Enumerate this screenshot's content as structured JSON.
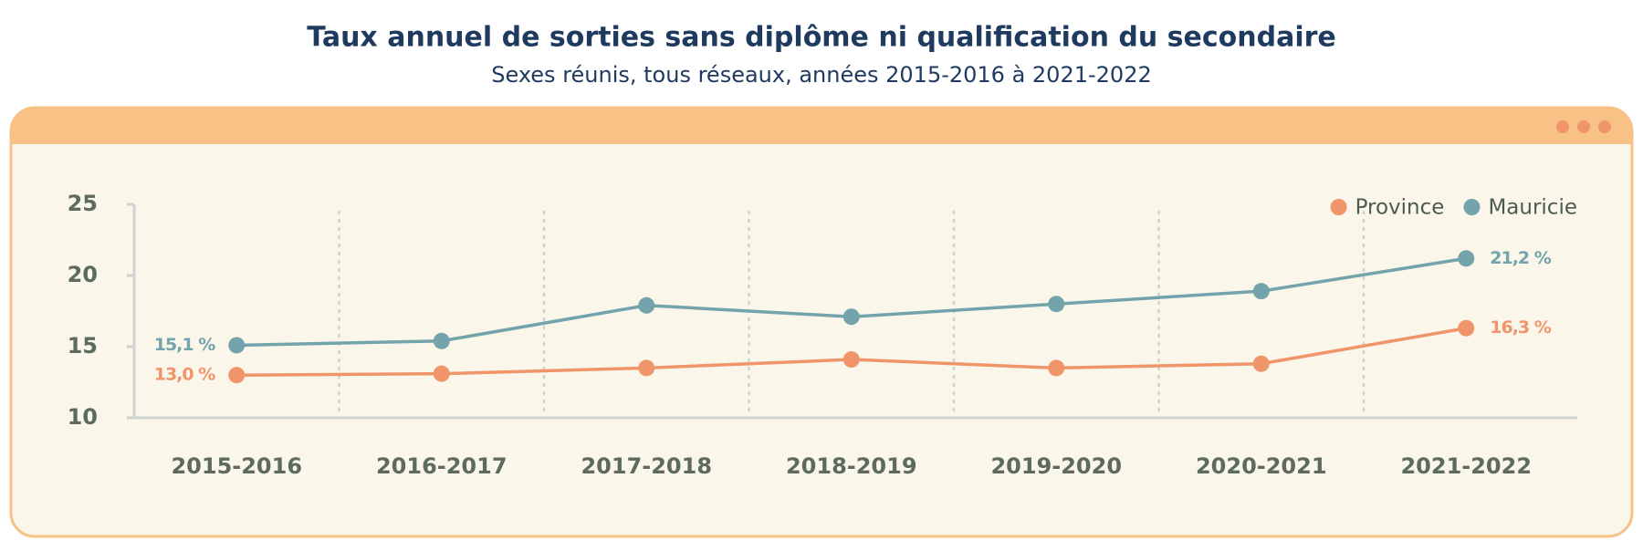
{
  "chart_data": {
    "type": "line",
    "title": "Taux annuel de sorties sans diplôme ni qualification du secondaire",
    "subtitle": "Sexes réunis, tous réseaux, années 2015-2016 à 2021-2022",
    "categories": [
      "2015-2016",
      "2016-2017",
      "2017-2018",
      "2018-2019",
      "2019-2020",
      "2020-2021",
      "2021-2022"
    ],
    "series": [
      {
        "name": "Province",
        "color": "#f0946a",
        "values": [
          13.0,
          13.1,
          13.5,
          14.1,
          13.5,
          13.8,
          16.3
        ],
        "value_labels": [
          "13,0 %",
          null,
          null,
          null,
          null,
          null,
          "16,3 %"
        ]
      },
      {
        "name": "Mauricie",
        "color": "#73a3ab",
        "values": [
          15.1,
          15.4,
          17.9,
          17.1,
          18.0,
          18.9,
          21.2
        ],
        "value_labels": [
          "15,1 %",
          null,
          null,
          null,
          null,
          null,
          "21,2 %"
        ]
      }
    ],
    "ylim": [
      10,
      25
    ],
    "yticks": [
      10,
      15,
      20,
      25
    ],
    "legend": "upper right"
  }
}
